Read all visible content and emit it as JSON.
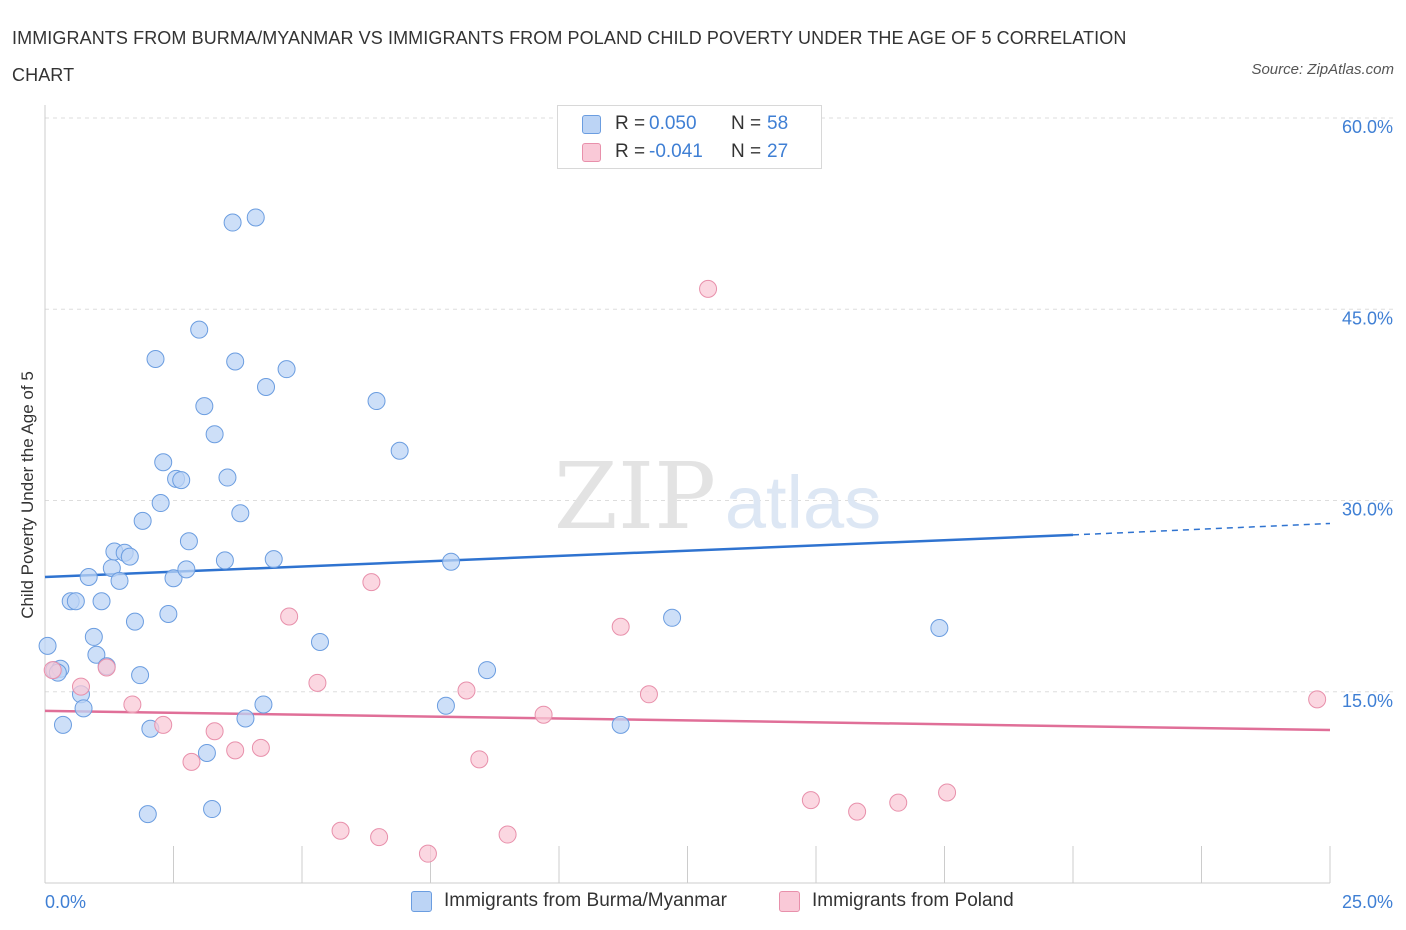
{
  "title": "IMMIGRANTS FROM BURMA/MYANMAR VS IMMIGRANTS FROM POLAND CHILD POVERTY UNDER THE AGE OF 5 CORRELATION CHART",
  "source": "Source: ZipAtlas.com",
  "watermark": {
    "zip": "ZIP",
    "atlas": "atlas"
  },
  "legend_top": [
    {
      "r_label": "R =",
      "r_value": "0.050",
      "n_label": "N =",
      "n_value": "58",
      "fill": "#bcd4f5",
      "stroke": "#6b9de0"
    },
    {
      "r_label": "R =",
      "r_value": "-0.041",
      "n_label": "N =",
      "n_value": "27",
      "fill": "#f9c9d7",
      "stroke": "#e890ab"
    }
  ],
  "colors": {
    "blue_fill": "#bcd4f5",
    "blue_stroke": "#6b9de0",
    "blue_line": "#2f73d0",
    "pink_fill": "#f9c9d7",
    "pink_stroke": "#e890ab",
    "pink_line": "#e06f98",
    "tick_text": "#3f7fd4",
    "grid": "#dddddd"
  },
  "chart_data": {
    "type": "scatter",
    "title": "IMMIGRANTS FROM BURMA/MYANMAR VS IMMIGRANTS FROM POLAND CHILD POVERTY UNDER THE AGE OF 5 CORRELATION CHART",
    "xlabel": "",
    "ylabel": "Child Poverty Under the Age of 5",
    "xlim": [
      0,
      25
    ],
    "ylim": [
      0,
      60
    ],
    "x_tick_labels": [
      "0.0%",
      "25.0%"
    ],
    "y_ticks": [
      15,
      30,
      45,
      60
    ],
    "y_tick_labels": [
      "15.0%",
      "30.0%",
      "45.0%",
      "60.0%"
    ],
    "grid": true,
    "legend_position": "top-center",
    "series": [
      {
        "name": "Immigrants from Burma/Myanmar",
        "r": 0.05,
        "n": 58,
        "trend": {
          "x": [
            0,
            20,
            25
          ],
          "y": [
            24.0,
            27.3,
            28.2
          ],
          "solid_until": 20
        },
        "points": [
          [
            0.05,
            18.6
          ],
          [
            0.18,
            16.7
          ],
          [
            0.3,
            16.8
          ],
          [
            0.35,
            12.4
          ],
          [
            0.5,
            22.1
          ],
          [
            0.6,
            22.1
          ],
          [
            0.7,
            14.8
          ],
          [
            0.75,
            13.7
          ],
          [
            0.85,
            24.0
          ],
          [
            0.95,
            19.3
          ],
          [
            1.0,
            17.9
          ],
          [
            1.1,
            22.1
          ],
          [
            1.2,
            17.0
          ],
          [
            1.3,
            24.7
          ],
          [
            1.35,
            26.0
          ],
          [
            1.45,
            23.7
          ],
          [
            1.55,
            25.9
          ],
          [
            1.65,
            25.6
          ],
          [
            1.75,
            20.5
          ],
          [
            1.85,
            16.3
          ],
          [
            1.9,
            28.4
          ],
          [
            2.0,
            5.4
          ],
          [
            2.05,
            12.1
          ],
          [
            2.15,
            41.1
          ],
          [
            2.25,
            29.8
          ],
          [
            2.3,
            33.0
          ],
          [
            2.4,
            21.1
          ],
          [
            2.5,
            23.9
          ],
          [
            2.55,
            31.7
          ],
          [
            2.65,
            31.6
          ],
          [
            2.75,
            24.6
          ],
          [
            2.8,
            26.8
          ],
          [
            3.0,
            43.4
          ],
          [
            3.1,
            37.4
          ],
          [
            3.15,
            10.2
          ],
          [
            3.25,
            5.8
          ],
          [
            3.3,
            35.2
          ],
          [
            3.5,
            25.3
          ],
          [
            3.55,
            31.8
          ],
          [
            3.65,
            51.8
          ],
          [
            3.7,
            40.9
          ],
          [
            3.8,
            29.0
          ],
          [
            3.9,
            12.9
          ],
          [
            4.1,
            52.2
          ],
          [
            4.25,
            14.0
          ],
          [
            4.3,
            38.9
          ],
          [
            4.45,
            25.4
          ],
          [
            4.7,
            40.3
          ],
          [
            5.35,
            18.9
          ],
          [
            6.45,
            37.8
          ],
          [
            6.9,
            33.9
          ],
          [
            7.8,
            13.9
          ],
          [
            7.9,
            25.2
          ],
          [
            8.6,
            16.7
          ],
          [
            11.2,
            12.4
          ],
          [
            12.2,
            20.8
          ],
          [
            17.4,
            20.0
          ],
          [
            0.25,
            16.5
          ]
        ]
      },
      {
        "name": "Immigrants from Poland",
        "r": -0.041,
        "n": 27,
        "trend": {
          "x": [
            0,
            25
          ],
          "y": [
            13.5,
            12.0
          ],
          "solid_until": 25
        },
        "points": [
          [
            0.15,
            16.7
          ],
          [
            0.7,
            15.4
          ],
          [
            1.2,
            16.9
          ],
          [
            1.7,
            14.0
          ],
          [
            2.3,
            12.4
          ],
          [
            2.85,
            9.5
          ],
          [
            3.3,
            11.9
          ],
          [
            3.7,
            10.4
          ],
          [
            4.2,
            10.6
          ],
          [
            4.75,
            20.9
          ],
          [
            5.3,
            15.7
          ],
          [
            5.75,
            4.1
          ],
          [
            6.35,
            23.6
          ],
          [
            6.5,
            3.6
          ],
          [
            7.45,
            2.3
          ],
          [
            8.2,
            15.1
          ],
          [
            8.45,
            9.7
          ],
          [
            9.0,
            3.8
          ],
          [
            9.7,
            13.2
          ],
          [
            11.2,
            20.1
          ],
          [
            11.75,
            14.8
          ],
          [
            12.9,
            46.6
          ],
          [
            14.9,
            6.5
          ],
          [
            15.8,
            5.6
          ],
          [
            16.6,
            6.3
          ],
          [
            17.55,
            7.1
          ],
          [
            24.75,
            14.4
          ]
        ]
      }
    ]
  }
}
